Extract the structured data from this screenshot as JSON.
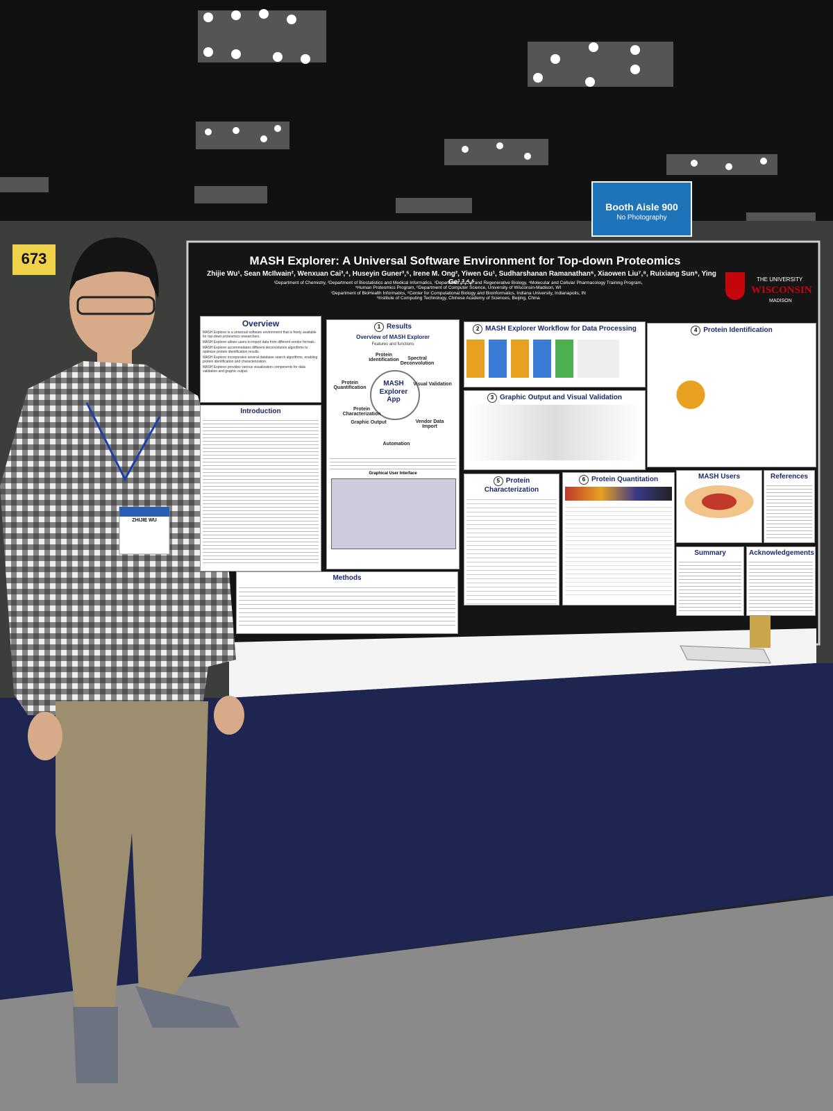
{
  "booth_number": "673",
  "booth_sign": {
    "title": "Booth Aisle 900",
    "subtitle": "No Photography"
  },
  "badge": {
    "name": "ZHIJIE WU"
  },
  "poster": {
    "title": "MASH Explorer: A Universal Software Environment for Top-down Proteomics",
    "authors": "Zhijie Wu¹, Sean McIlwain², Wenxuan Cai³,⁴, Huseyin Guner³,⁵, Irene M. Ong², Yiwen Gu¹, Sudharshanan Ramanathan⁶, Xiaowen Liu⁷,⁸, Ruixiang Sun⁹, Ying Ge¹,³,⁴,⁵",
    "affiliations": [
      "¹Department of Chemistry, ²Department of Biostatistics and Medical Informatics, ³Department of Cell and Regenerative Biology, ⁴Molecular and Cellular Pharmacology Training Program,",
      "⁵Human Proteomics Program, ⁶Department of Computer Science, University of Wisconsin-Madison, WI",
      "⁷Department of BioHealth Informatics, ⁸Center for Computational Biology and Bioinformatics, Indiana University, Indianapolis, IN",
      "⁹Institute of Computing Technology, Chinese Academy of Sciences, Beijing, China"
    ],
    "logo": {
      "line1": "THE UNIVERSITY",
      "line2": "WISCONSIN",
      "line3": "MADISON"
    },
    "overview": {
      "heading": "Overview",
      "bullets": [
        "MASH Explorer is a universal software environment that is freely available for top-down proteomics researchers.",
        "MASH Explorer allows users to import data from different vendor formats.",
        "MASH Explorer accommodates different deconvolution algorithms to optimize protein identification results.",
        "MASH Explorer incorporates several database search algorithms, enabling protein identification and characterization.",
        "MASH Explorer provides various visualization components for data validation and graphic output."
      ]
    },
    "introduction": {
      "heading": "Introduction"
    },
    "methods": {
      "heading": "Methods"
    },
    "results": {
      "number": "1",
      "heading": "Results",
      "subheading": "Overview of MASH Explorer",
      "features_label": "Features and functions",
      "center": "MASH Explorer App",
      "features": [
        "Protein Identification",
        "Spectral Deconvolution",
        "Visual Validation",
        "Vendor Data Import",
        "Automation",
        "Graphic Output",
        "Protein Characterization",
        "Protein Quantification"
      ],
      "gui_label": "Graphical User Interface"
    },
    "panels": [
      {
        "number": "2",
        "heading": "MASH Explorer Workflow for Data Processing"
      },
      {
        "number": "3",
        "heading": "Graphic Output and Visual Validation"
      },
      {
        "number": "4",
        "heading": "Protein Identification"
      },
      {
        "number": "5",
        "heading": "Protein Characterization"
      },
      {
        "number": "6",
        "heading": "Protein Quantitation"
      }
    ],
    "users": {
      "heading": "MASH Users"
    },
    "references": {
      "heading": "References"
    },
    "summary": {
      "heading": "Summary"
    },
    "acknowledgements": {
      "heading": "Acknowledgements"
    }
  }
}
